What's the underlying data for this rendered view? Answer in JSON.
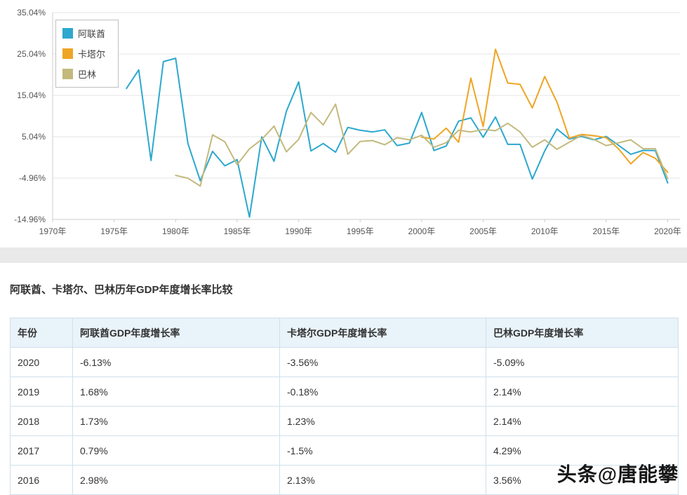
{
  "chart_data": {
    "type": "line",
    "title": "",
    "x_ticks": [
      "1970年",
      "1975年",
      "1980年",
      "1985年",
      "1990年",
      "1995年",
      "2000年",
      "2005年",
      "2010年",
      "2015年",
      "2020年"
    ],
    "y_ticks": [
      "35.04%",
      "25.04%",
      "15.04%",
      "5.04%",
      "-4.96%",
      "-14.96%"
    ],
    "xlim": [
      1970,
      2021
    ],
    "ylim": [
      -14.96,
      35.04
    ],
    "grid": "horizontal",
    "legend_position": "top-left",
    "series": [
      {
        "name": "阿联酋",
        "color": "#2ca8ce",
        "points": [
          [
            1976,
            16.7
          ],
          [
            1977,
            21.2
          ],
          [
            1978,
            -0.7
          ],
          [
            1979,
            23.2
          ],
          [
            1980,
            24.0
          ],
          [
            1981,
            3.4
          ],
          [
            1982,
            -5.6
          ],
          [
            1983,
            1.5
          ],
          [
            1984,
            -2.0
          ],
          [
            1985,
            -0.5
          ],
          [
            1986,
            -14.4
          ],
          [
            1987,
            5.0
          ],
          [
            1988,
            -0.9
          ],
          [
            1989,
            11.2
          ],
          [
            1990,
            18.3
          ],
          [
            1991,
            1.6
          ],
          [
            1992,
            3.4
          ],
          [
            1993,
            1.3
          ],
          [
            1994,
            7.3
          ],
          [
            1995,
            6.6
          ],
          [
            1996,
            6.2
          ],
          [
            1997,
            6.7
          ],
          [
            1998,
            2.9
          ],
          [
            1999,
            3.5
          ],
          [
            2000,
            10.9
          ],
          [
            2001,
            1.7
          ],
          [
            2002,
            2.8
          ],
          [
            2003,
            8.8
          ],
          [
            2004,
            9.6
          ],
          [
            2005,
            4.9
          ],
          [
            2006,
            9.8
          ],
          [
            2007,
            3.2
          ],
          [
            2008,
            3.2
          ],
          [
            2009,
            -5.2
          ],
          [
            2010,
            1.6
          ],
          [
            2011,
            6.9
          ],
          [
            2012,
            4.5
          ],
          [
            2013,
            5.1
          ],
          [
            2014,
            4.3
          ],
          [
            2015,
            5.1
          ],
          [
            2016,
            2.98
          ],
          [
            2017,
            0.79
          ],
          [
            2018,
            1.73
          ],
          [
            2019,
            1.68
          ],
          [
            2020,
            -6.13
          ]
        ]
      },
      {
        "name": "卡塔尔",
        "color": "#efa524",
        "points": [
          [
            2000,
            4.9
          ],
          [
            2001,
            4.5
          ],
          [
            2002,
            7.1
          ],
          [
            2003,
            3.7
          ],
          [
            2004,
            19.2
          ],
          [
            2005,
            7.5
          ],
          [
            2006,
            26.2
          ],
          [
            2007,
            18.0
          ],
          [
            2008,
            17.7
          ],
          [
            2009,
            12.0
          ],
          [
            2010,
            19.6
          ],
          [
            2011,
            13.4
          ],
          [
            2012,
            4.7
          ],
          [
            2013,
            5.6
          ],
          [
            2014,
            5.3
          ],
          [
            2015,
            4.8
          ],
          [
            2016,
            2.13
          ],
          [
            2017,
            -1.5
          ],
          [
            2018,
            1.23
          ],
          [
            2019,
            -0.18
          ],
          [
            2020,
            -3.56
          ]
        ]
      },
      {
        "name": "巴林",
        "color": "#c3b97d",
        "points": [
          [
            1980,
            -4.3
          ],
          [
            1981,
            -5.0
          ],
          [
            1982,
            -6.9
          ],
          [
            1983,
            5.5
          ],
          [
            1984,
            3.8
          ],
          [
            1985,
            -1.7
          ],
          [
            1986,
            2.1
          ],
          [
            1987,
            4.4
          ],
          [
            1988,
            7.6
          ],
          [
            1989,
            1.4
          ],
          [
            1990,
            4.4
          ],
          [
            1991,
            10.9
          ],
          [
            1992,
            7.9
          ],
          [
            1993,
            12.9
          ],
          [
            1994,
            0.8
          ],
          [
            1995,
            3.9
          ],
          [
            1996,
            4.1
          ],
          [
            1997,
            3.1
          ],
          [
            1998,
            4.8
          ],
          [
            1999,
            4.3
          ],
          [
            2000,
            5.4
          ],
          [
            2001,
            2.5
          ],
          [
            2002,
            3.6
          ],
          [
            2003,
            6.6
          ],
          [
            2004,
            6.2
          ],
          [
            2005,
            6.8
          ],
          [
            2006,
            6.5
          ],
          [
            2007,
            8.3
          ],
          [
            2008,
            6.2
          ],
          [
            2009,
            2.5
          ],
          [
            2010,
            4.3
          ],
          [
            2011,
            2.0
          ],
          [
            2012,
            3.7
          ],
          [
            2013,
            5.4
          ],
          [
            2014,
            4.4
          ],
          [
            2015,
            2.9
          ],
          [
            2016,
            3.56
          ],
          [
            2017,
            4.29
          ],
          [
            2018,
            2.14
          ],
          [
            2019,
            2.14
          ],
          [
            2020,
            -5.09
          ]
        ]
      }
    ]
  },
  "section": {
    "title": "阿联酋、卡塔尔、巴林历年GDP年度增长率比较"
  },
  "table": {
    "headers": [
      "年份",
      "阿联酋GDP年度增长率",
      "卡塔尔GDP年度增长率",
      "巴林GDP年度增长率"
    ],
    "rows": [
      [
        "2020",
        "-6.13%",
        "-3.56%",
        "-5.09%"
      ],
      [
        "2019",
        "1.68%",
        "-0.18%",
        "2.14%"
      ],
      [
        "2018",
        "1.73%",
        "1.23%",
        "2.14%"
      ],
      [
        "2017",
        "0.79%",
        "-1.5%",
        "4.29%"
      ],
      [
        "2016",
        "2.98%",
        "2.13%",
        "3.56%"
      ]
    ]
  },
  "watermark": {
    "text": "头条@唐能攀"
  }
}
